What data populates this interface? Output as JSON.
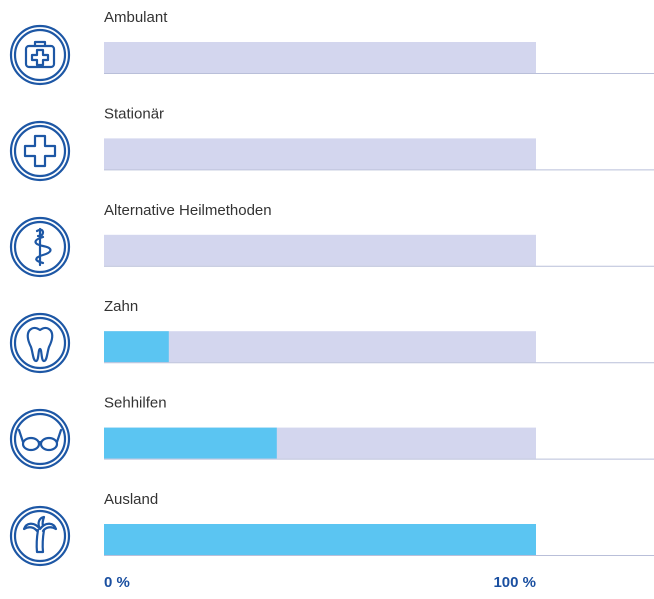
{
  "chart_data": {
    "type": "bar",
    "orientation": "horizontal",
    "categories": [
      "Ambulant",
      "Stationär",
      "Alternative Heilmethoden",
      "Zahn",
      "Sehhilfen",
      "Ausland"
    ],
    "values": [
      0,
      0,
      0,
      15,
      40,
      100
    ],
    "color": "#5bc5f2",
    "track_color": "#d3d6ee",
    "xlim": [
      0,
      100
    ],
    "xticks": [
      {
        "value": 0,
        "label": "0 %"
      },
      {
        "value": 100,
        "label": "100 %"
      }
    ]
  }
}
